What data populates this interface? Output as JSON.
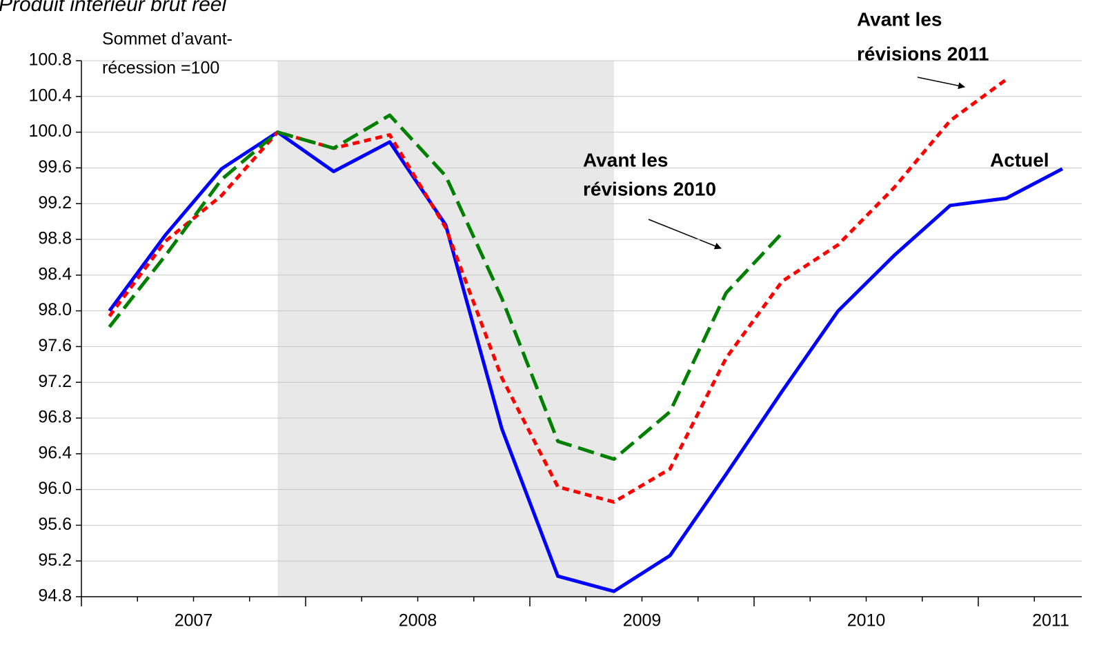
{
  "chart_data": {
    "type": "line",
    "title": "Produit intérieur brut réel",
    "categories": [
      "2007",
      null,
      null,
      null,
      "2008",
      null,
      null,
      null,
      "2009",
      null,
      null,
      null,
      "2010",
      null,
      null,
      null,
      "2011",
      null
    ],
    "series": [
      {
        "name": "Actuel",
        "color": "#0000ff",
        "line_style": "solid",
        "values": [
          98.0,
          98.85,
          99.59,
          100.0,
          99.56,
          99.89,
          98.96,
          96.68,
          95.03,
          94.86,
          95.26,
          96.17,
          97.1,
          98.0,
          98.62,
          99.18,
          99.26,
          99.59
        ]
      },
      {
        "name": "Avant les révisions 2011",
        "color": "#ff0000",
        "line_style": "short-dash",
        "values": [
          97.94,
          98.78,
          99.29,
          100.0,
          99.82,
          99.97,
          98.93,
          97.25,
          96.03,
          95.86,
          96.23,
          97.47,
          98.33,
          98.74,
          99.38,
          100.13,
          100.59,
          null
        ]
      },
      {
        "name": "Avant les révisions 2010",
        "color": "#008000",
        "line_style": "long-dash",
        "values": [
          97.82,
          98.62,
          99.47,
          100.0,
          99.82,
          100.19,
          99.51,
          98.14,
          96.54,
          96.34,
          96.87,
          98.2,
          98.87,
          null,
          null,
          null,
          null,
          null
        ]
      }
    ],
    "ylim": [
      94.8,
      100.8
    ],
    "yticks": [
      94.8,
      95.2,
      95.6,
      {
        "value": 96.0,
        "label": "96.0"
      },
      96.4,
      96.8,
      97.2,
      97.6,
      {
        "value": 98.0,
        "label": "98.0"
      },
      98.4,
      98.8,
      99.2,
      99.6,
      {
        "value": 100.0,
        "label": "100.0"
      },
      100.4,
      100.8
    ],
    "grid": true,
    "shaded_span": [
      3,
      9
    ],
    "annotations": [
      {
        "lines": [
          "Sommet d’avant-",
          "récession =100"
        ]
      },
      {
        "lines": [
          "Avant les",
          "révisions 2010"
        ]
      },
      {
        "lines": [
          "Avant les",
          "révisions 2011"
        ]
      },
      {
        "lines": [
          "Actuel"
        ]
      }
    ]
  }
}
